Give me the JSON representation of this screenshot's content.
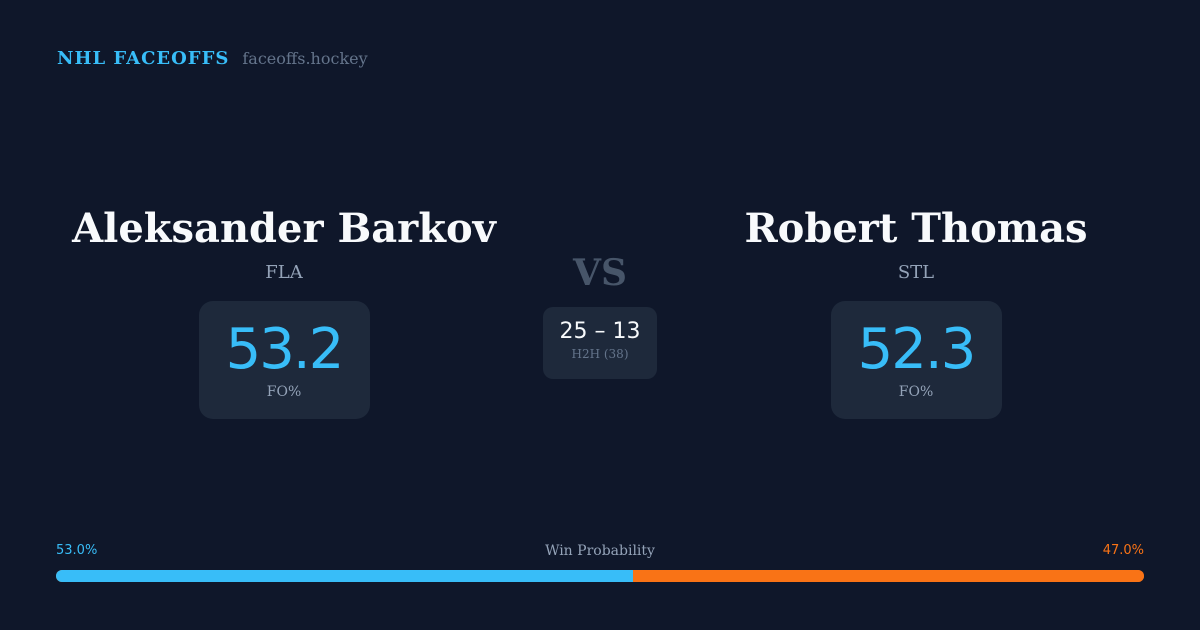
{
  "brand": {
    "title": "NHL FACEOFFS",
    "url": "faceoffs.hockey"
  },
  "player_a": {
    "name": "Aleksander Barkov",
    "team": "FLA",
    "fo_pct": "53.2",
    "fo_label": "FO%"
  },
  "player_b": {
    "name": "Robert Thomas",
    "team": "STL",
    "fo_pct": "52.3",
    "fo_label": "FO%"
  },
  "vs": "VS",
  "h2h": {
    "score": "25 – 13",
    "label": "H2H (38)"
  },
  "win_probability": {
    "label": "Win Probability",
    "a_text": "53.0%",
    "b_text": "47.0%",
    "a_value": 53.0,
    "b_value": 47.0
  },
  "colors": {
    "accent_a": "#38bdf8",
    "accent_b": "#f97316",
    "background": "#0f172a",
    "card": "#1e293b"
  }
}
